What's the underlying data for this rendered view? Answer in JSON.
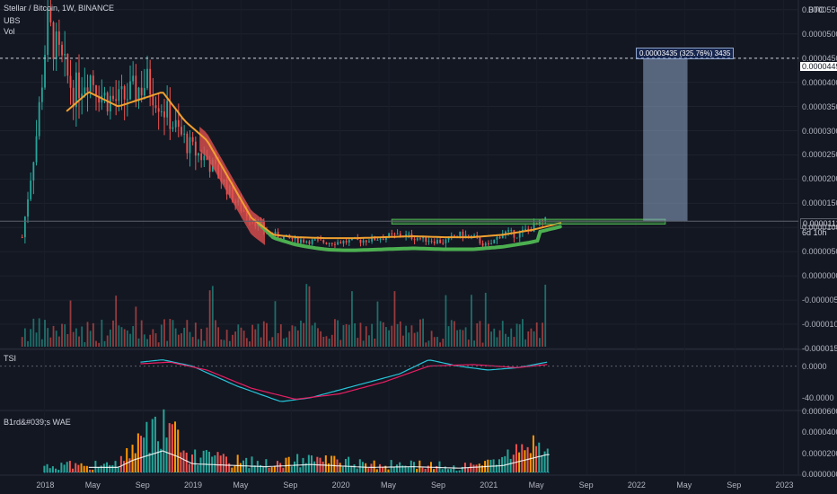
{
  "header": {
    "symbol_line": "Stellar / Bitcoin, 1W, BINANCE",
    "indicator_1": "UBS",
    "indicator_2": "Vol",
    "currency_badge": "BTC"
  },
  "main_pane": {
    "y_ticks": [
      "0.00005500",
      "0.00005000",
      "0.00004500",
      "0.00004000",
      "0.00003500",
      "0.00003000",
      "0.00002500",
      "0.00002000",
      "0.00001500",
      "0.00001000",
      "0.00000500",
      "0.00000000",
      "-0.00000500",
      "-0.00001000",
      "-0.00001500"
    ],
    "target_price": "0.00004495",
    "current_price": "0.00001128",
    "countdown": "6d 10h",
    "measure_label": "0.00003435 (325.76%) 3435"
  },
  "tsi_pane": {
    "title": "TSI",
    "y_ticks": [
      "0.0000",
      "-40.0000"
    ]
  },
  "wae_pane": {
    "title": "B1rd&#039;s WAE",
    "y_ticks": [
      "0.00006000",
      "0.00004000",
      "0.00002000",
      "0.00000000"
    ]
  },
  "x_axis": {
    "labels": [
      "2018",
      "May",
      "Sep",
      "2019",
      "May",
      "Sep",
      "2020",
      "May",
      "Sep",
      "2021",
      "May",
      "Sep",
      "2022",
      "May",
      "Sep",
      "2023"
    ]
  },
  "colors": {
    "background": "#131722",
    "up": "#26a69a",
    "down": "#ef5350",
    "ma_line": "#f0a030",
    "band_green": "#4caf50",
    "band_red": "#e05050",
    "tsi_line": "#26c6da",
    "tsi_signal": "#e91e63",
    "measure_box": "#8fa5c8"
  },
  "chart_data": [
    {
      "type": "candlestick",
      "title": "Stellar / Bitcoin, 1W, BINANCE",
      "x_unit": "year (decimal)",
      "y_unit": "BTC",
      "ylim": [
        -1.5e-05,
        5.7e-05
      ],
      "xlim": [
        2017.7,
        2023.1
      ],
      "series": [
        {
          "name": "price",
          "points": [
            [
              2017.85,
              8e-06
            ],
            [
              2017.95,
              3e-05
            ],
            [
              2018.02,
              5.2e-05
            ],
            [
              2018.1,
              4.5e-05
            ],
            [
              2018.2,
              3.8e-05
            ],
            [
              2018.3,
              4.2e-05
            ],
            [
              2018.4,
              3.7e-05
            ],
            [
              2018.5,
              3.6e-05
            ],
            [
              2018.6,
              3.8e-05
            ],
            [
              2018.7,
              4e-05
            ],
            [
              2018.8,
              3.5e-05
            ],
            [
              2018.9,
              3e-05
            ],
            [
              2019.0,
              2.6e-05
            ],
            [
              2019.1,
              2.4e-05
            ],
            [
              2019.2,
              2e-05
            ],
            [
              2019.3,
              1.5e-05
            ],
            [
              2019.4,
              1.2e-05
            ],
            [
              2019.5,
              9e-06
            ],
            [
              2019.6,
              8e-06
            ],
            [
              2019.7,
              7.5e-06
            ],
            [
              2019.8,
              7.2e-06
            ],
            [
              2019.9,
              7e-06
            ],
            [
              2020.0,
              7e-06
            ],
            [
              2020.1,
              7.2e-06
            ],
            [
              2020.2,
              7.5e-06
            ],
            [
              2020.3,
              8e-06
            ],
            [
              2020.4,
              8.5e-06
            ],
            [
              2020.5,
              8e-06
            ],
            [
              2020.6,
              7.5e-06
            ],
            [
              2020.7,
              7e-06
            ],
            [
              2020.8,
              8.5e-06
            ],
            [
              2020.9,
              8e-06
            ],
            [
              2021.0,
              6e-06
            ],
            [
              2021.1,
              9e-06
            ],
            [
              2021.2,
              8.5e-06
            ],
            [
              2021.3,
              1e-05
            ],
            [
              2021.4,
              1.13e-05
            ]
          ]
        },
        {
          "name": "UBS",
          "points": [
            [
              2018.15,
              3.4e-05
            ],
            [
              2018.3,
              3.8e-05
            ],
            [
              2018.5,
              3.5e-05
            ],
            [
              2018.7,
              3.7e-05
            ],
            [
              2018.8,
              3.8e-05
            ],
            [
              2018.95,
              3.2e-05
            ],
            [
              2019.1,
              2.8e-05
            ],
            [
              2019.25,
              2e-05
            ],
            [
              2019.4,
              1.2e-05
            ],
            [
              2019.55,
              8.5e-06
            ],
            [
              2019.7,
              8e-06
            ],
            [
              2019.9,
              7.8e-06
            ],
            [
              2020.1,
              7.8e-06
            ],
            [
              2020.3,
              8e-06
            ],
            [
              2020.5,
              8.2e-06
            ],
            [
              2020.7,
              8e-06
            ],
            [
              2020.9,
              8e-06
            ],
            [
              2021.1,
              8.5e-06
            ],
            [
              2021.3,
              9.5e-06
            ],
            [
              2021.5,
              1.1e-05
            ]
          ]
        }
      ]
    },
    {
      "type": "line",
      "title": "TSI",
      "ylim": [
        -55,
        20
      ],
      "series": [
        {
          "name": "",
          "points": [
            [
              2018.65,
              5
            ],
            [
              2018.8,
              8
            ],
            [
              2019.0,
              0
            ],
            [
              2019.3,
              -25
            ],
            [
              2019.6,
              -45
            ],
            [
              2019.8,
              -40
            ],
            [
              2020.1,
              -25
            ],
            [
              2020.4,
              -10
            ],
            [
              2020.6,
              8
            ],
            [
              2020.8,
              0
            ],
            [
              2021.0,
              -5
            ],
            [
              2021.2,
              -2
            ],
            [
              2021.4,
              5
            ]
          ]
        },
        {
          "name": "",
          "points": [
            [
              2018.65,
              3
            ],
            [
              2018.85,
              5
            ],
            [
              2019.1,
              -5
            ],
            [
              2019.4,
              -28
            ],
            [
              2019.7,
              -42
            ],
            [
              2020.0,
              -35
            ],
            [
              2020.3,
              -20
            ],
            [
              2020.6,
              0
            ],
            [
              2020.9,
              2
            ],
            [
              2021.2,
              -2
            ],
            [
              2021.4,
              2
            ]
          ]
        }
      ]
    },
    {
      "type": "bar",
      "title": "B1rd&#039;s WAE",
      "ylim": [
        0,
        6e-05
      ],
      "series": [
        {
          "name": "",
          "points": [
            [
              2018.5,
              1e-05
            ],
            [
              2018.6,
              3e-05
            ],
            [
              2018.8,
              5.5e-05
            ],
            [
              2018.9,
              4e-05
            ],
            [
              2019.0,
              2e-05
            ],
            [
              2019.3,
              1.5e-05
            ],
            [
              2019.5,
              1.2e-05
            ],
            [
              2019.8,
              1.8e-05
            ],
            [
              2020.2,
              1e-05
            ],
            [
              2020.5,
              1.2e-05
            ],
            [
              2020.8,
              8e-06
            ],
            [
              2021.1,
              1.5e-05
            ],
            [
              2021.4,
              4.5e-05
            ]
          ]
        }
      ]
    }
  ]
}
